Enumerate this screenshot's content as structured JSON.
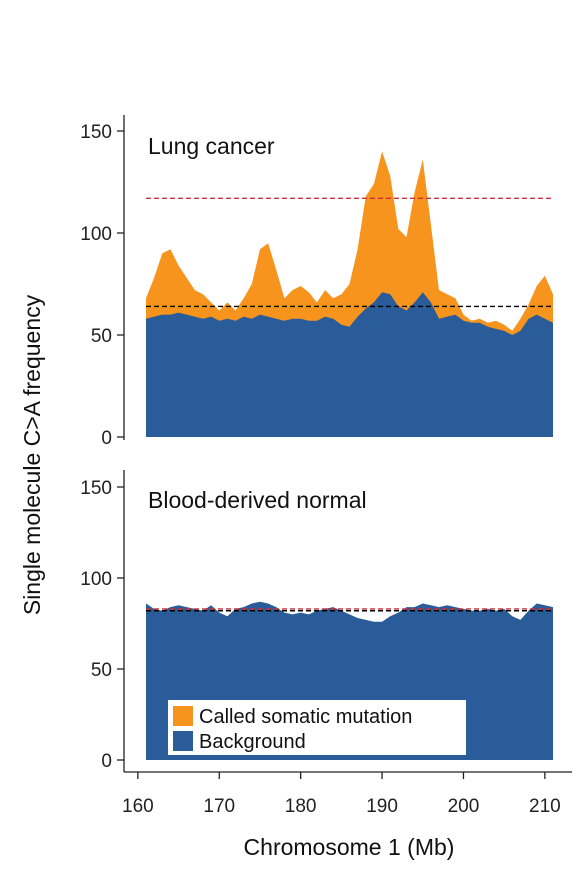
{
  "chart_data": {
    "type": "area",
    "ylabel": "Single molecule C>A frequency",
    "xlabel": "Chromosome 1 (Mb)",
    "xlim": [
      161,
      211
    ],
    "xticks": [
      160,
      170,
      180,
      190,
      200,
      210
    ],
    "colors": {
      "somatic": "#F7941D",
      "background": "#2A5C99",
      "red_line": "#C8323C",
      "black_line": "#000000"
    },
    "legend": {
      "position": "bottom-center",
      "entries": [
        "Called somatic mutation",
        "Background"
      ]
    },
    "panels": [
      {
        "title": "Lung cancer",
        "ylim": [
          0,
          150
        ],
        "yticks": [
          0,
          50,
          100,
          150
        ],
        "red_dashed_line": 117,
        "black_dashed_line": 64,
        "x": [
          161,
          162,
          163,
          164,
          165,
          166,
          167,
          168,
          169,
          170,
          171,
          172,
          173,
          174,
          175,
          176,
          177,
          178,
          179,
          180,
          181,
          182,
          183,
          184,
          185,
          186,
          187,
          188,
          189,
          190,
          191,
          192,
          193,
          194,
          195,
          196,
          197,
          198,
          199,
          200,
          201,
          202,
          203,
          204,
          205,
          206,
          207,
          208,
          209,
          210,
          211
        ],
        "series": [
          {
            "name": "Background",
            "values": [
              58,
              59,
              60,
              60,
              61,
              60,
              59,
              58,
              59,
              57,
              58,
              57,
              59,
              58,
              60,
              59,
              58,
              57,
              58,
              58,
              57,
              57,
              59,
              58,
              55,
              54,
              59,
              63,
              66,
              71,
              70,
              64,
              62,
              66,
              71,
              66,
              58,
              59,
              60,
              57,
              56,
              56,
              54,
              53,
              52,
              50,
              52,
              58,
              60,
              58,
              56
            ]
          },
          {
            "name": "Called somatic mutation",
            "values": [
              68,
              78,
              90,
              92,
              84,
              78,
              72,
              70,
              66,
              62,
              66,
              62,
              68,
              75,
              92,
              95,
              82,
              68,
              72,
              74,
              71,
              66,
              72,
              68,
              70,
              75,
              92,
              118,
              124,
              140,
              128,
              102,
              98,
              120,
              136,
              104,
              72,
              70,
              68,
              60,
              57,
              58,
              56,
              57,
              55,
              52,
              58,
              65,
              74,
              79,
              70
            ]
          }
        ]
      },
      {
        "title": "Blood-derived normal",
        "ylim": [
          0,
          150
        ],
        "yticks": [
          0,
          50,
          100,
          150
        ],
        "red_dashed_line": 83,
        "black_dashed_line": 82,
        "x": [
          161,
          162,
          163,
          164,
          165,
          166,
          167,
          168,
          169,
          170,
          171,
          172,
          173,
          174,
          175,
          176,
          177,
          178,
          179,
          180,
          181,
          182,
          183,
          184,
          185,
          186,
          187,
          188,
          189,
          190,
          191,
          192,
          193,
          194,
          195,
          196,
          197,
          198,
          199,
          200,
          201,
          202,
          203,
          204,
          205,
          206,
          207,
          208,
          209,
          210,
          211
        ],
        "series": [
          {
            "name": "Background",
            "values": [
              86,
              83,
              82,
              84,
              85,
              84,
              83,
              82,
              85,
              81,
              79,
              83,
              84,
              86,
              87,
              86,
              84,
              81,
              80,
              81,
              80,
              82,
              83,
              84,
              82,
              80,
              78,
              77,
              76,
              76,
              79,
              81,
              84,
              84,
              86,
              85,
              84,
              85,
              84,
              83,
              82,
              82,
              83,
              82,
              83,
              79,
              77,
              82,
              86,
              85,
              84
            ]
          }
        ]
      }
    ]
  }
}
